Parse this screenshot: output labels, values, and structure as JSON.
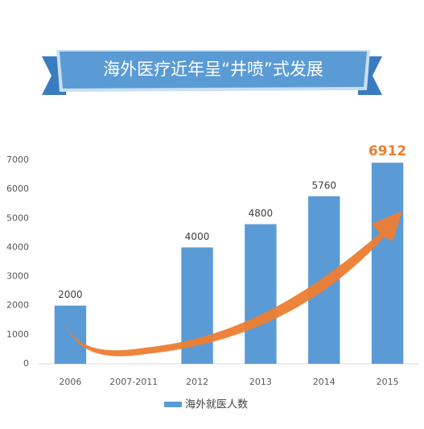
{
  "chart_data": {
    "type": "bar",
    "title": "海外医疗近年呈“井喷”式发展",
    "categories": [
      "2006",
      "2007-2011",
      "2012",
      "2013",
      "2014",
      "2015"
    ],
    "series": [
      {
        "name": "海外就医人数",
        "color": "#5b9bd5",
        "values": [
          2000,
          null,
          4000,
          4800,
          5760,
          6912
        ]
      }
    ],
    "ylim": [
      0,
      7000
    ],
    "yticks": [
      0,
      1000,
      2000,
      3000,
      4000,
      5000,
      6000,
      7000
    ],
    "grid": false
  }
}
